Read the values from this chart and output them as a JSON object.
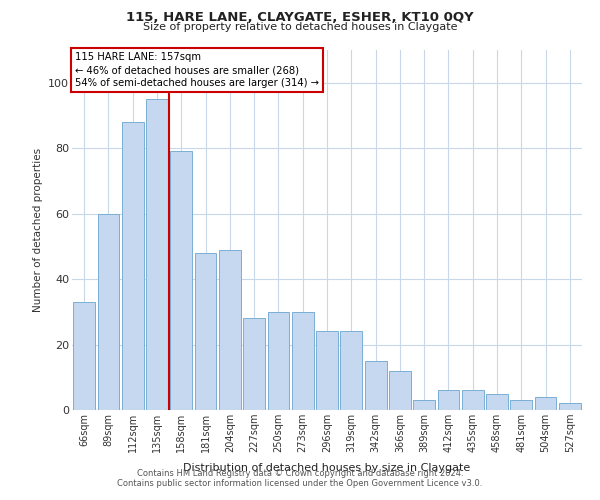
{
  "title": "115, HARE LANE, CLAYGATE, ESHER, KT10 0QY",
  "subtitle": "Size of property relative to detached houses in Claygate",
  "xlabel": "Distribution of detached houses by size in Claygate",
  "ylabel": "Number of detached properties",
  "categories": [
    "66sqm",
    "89sqm",
    "112sqm",
    "135sqm",
    "158sqm",
    "181sqm",
    "204sqm",
    "227sqm",
    "250sqm",
    "273sqm",
    "296sqm",
    "319sqm",
    "342sqm",
    "366sqm",
    "389sqm",
    "412sqm",
    "435sqm",
    "458sqm",
    "481sqm",
    "504sqm",
    "527sqm"
  ],
  "values": [
    33,
    60,
    88,
    95,
    79,
    48,
    49,
    28,
    30,
    30,
    24,
    24,
    15,
    12,
    3,
    6,
    6,
    5,
    3,
    4,
    2
  ],
  "bar_color": "#c5d8ef",
  "bar_edge_color": "#7aafd4",
  "highlight_line_index": 4,
  "highlight_line_color": "#cc0000",
  "annotation_box_text": "115 HARE LANE: 157sqm\n← 46% of detached houses are smaller (268)\n54% of semi-detached houses are larger (314) →",
  "annotation_box_color": "#cc0000",
  "ylim": [
    0,
    110
  ],
  "yticks": [
    0,
    20,
    40,
    60,
    80,
    100
  ],
  "footer_line1": "Contains HM Land Registry data © Crown copyright and database right 2024.",
  "footer_line2": "Contains public sector information licensed under the Open Government Licence v3.0.",
  "bg_color": "#ffffff",
  "grid_color": "#c8d8e8"
}
